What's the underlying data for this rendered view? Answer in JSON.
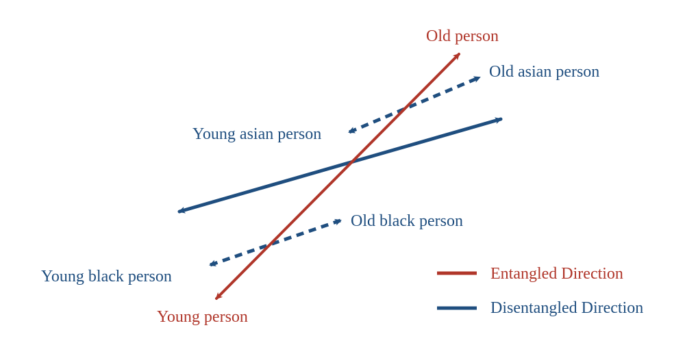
{
  "colors": {
    "entangled": "#b0362a",
    "disentangled": "#1f4e7f",
    "background": "#ffffff"
  },
  "labels": {
    "old_person": "Old person",
    "young_person": "Young person",
    "old_asian_person": "Old asian person",
    "young_asian_person": "Young asian person",
    "old_black_person": "Old black person",
    "young_black_person": "Young black person"
  },
  "legend": {
    "entangled": "Entangled Direction",
    "disentangled": "Disentangled Direction"
  }
}
